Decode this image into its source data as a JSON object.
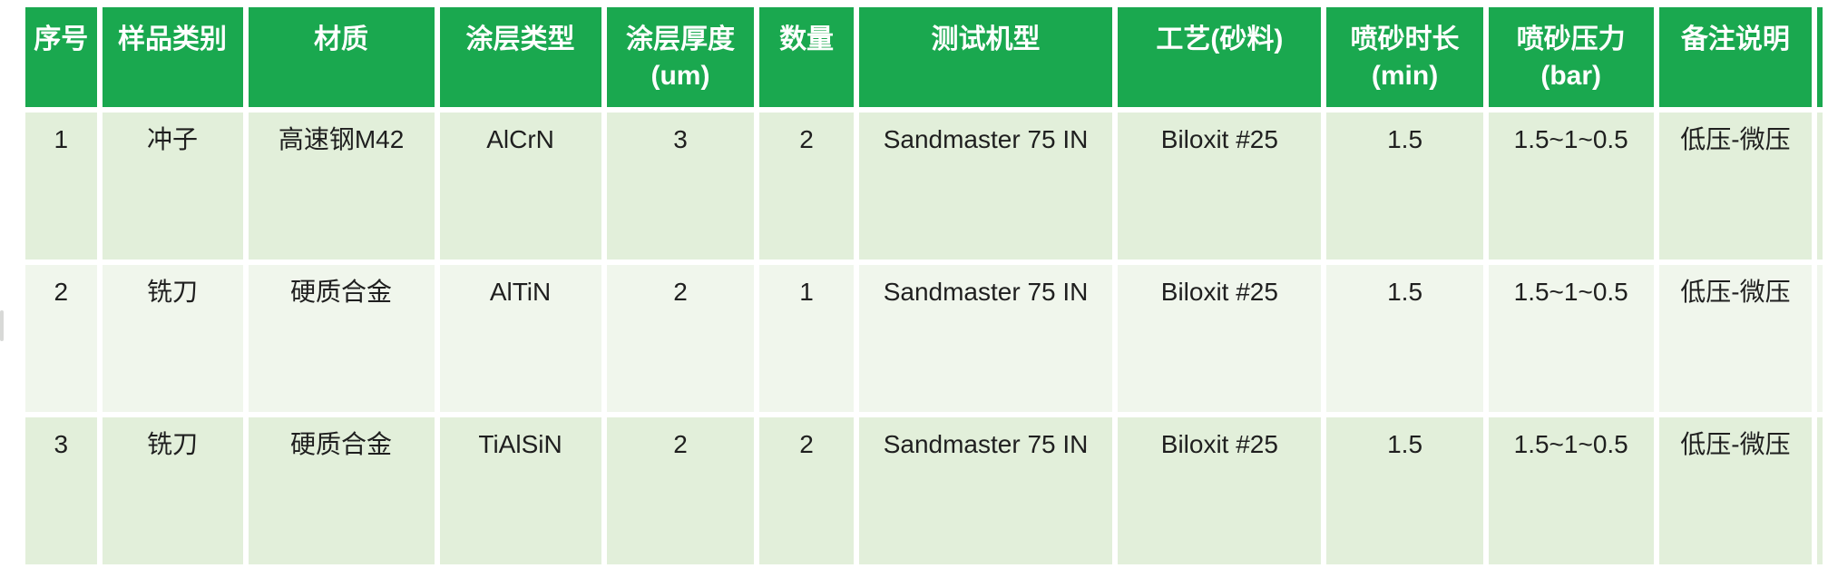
{
  "colors": {
    "header_bg": "#1aa84f",
    "header_text": "#ffffff",
    "row_bg": "#e2efda",
    "row_alt_bg": "#f0f6ec",
    "body_text": "#1f1f1f"
  },
  "chart_data": {
    "type": "table",
    "columns": [
      "序号",
      "样品类别",
      "材质",
      "涂层类型",
      "涂层厚度\n(um)",
      "数量",
      "测试机型",
      "工艺(砂料)",
      "喷砂时长\n(min)",
      "喷砂压力\n(bar)",
      "备注说明"
    ],
    "rows": [
      [
        "1",
        "冲子",
        "高速钢M42",
        "AlCrN",
        "3",
        "2",
        "Sandmaster 75 IN",
        "Biloxit #25",
        "1.5",
        "1.5~1~0.5",
        "低压-微压"
      ],
      [
        "2",
        "铣刀",
        "硬质合金",
        "AlTiN",
        "2",
        "1",
        "Sandmaster 75 IN",
        "Biloxit #25",
        "1.5",
        "1.5~1~0.5",
        "低压-微压"
      ],
      [
        "3",
        "铣刀",
        "硬质合金",
        "TiAlSiN",
        "2",
        "2",
        "Sandmaster 75 IN",
        "Biloxit #25",
        "1.5",
        "1.5~1~0.5",
        "低压-微压"
      ]
    ]
  }
}
